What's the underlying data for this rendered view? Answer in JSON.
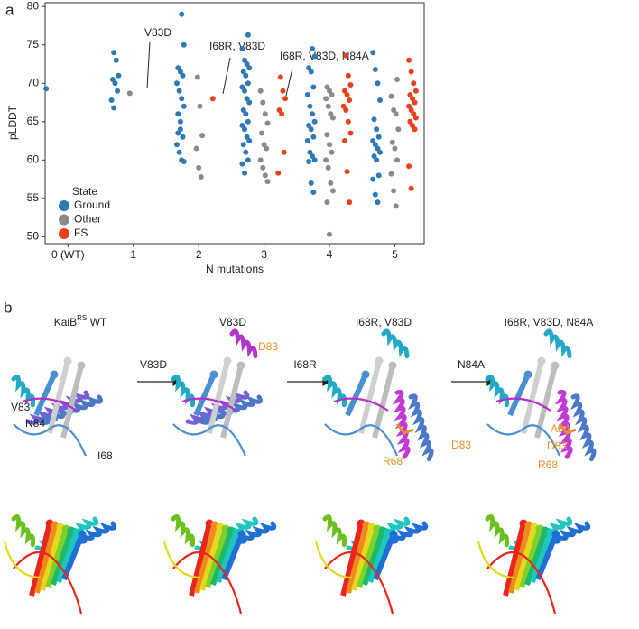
{
  "chart_data": {
    "type": "strip",
    "panel_label": "a",
    "xlabel": "N mutations",
    "ylabel": "pLDDT",
    "xlim": [
      -0.35,
      5.45
    ],
    "xticks": [
      {
        "value": 0,
        "label": "0 (WT)"
      },
      1,
      2,
      3,
      4,
      5
    ],
    "ylim": [
      49.1,
      80.5
    ],
    "yticks": [
      50,
      55,
      60,
      65,
      70,
      75,
      80
    ],
    "legend_title": "State",
    "legend": "lower left",
    "series": [
      {
        "name": "Ground",
        "color": "#2e7ab6",
        "offset": -0.28,
        "x": [
          0,
          1,
          1,
          1,
          1,
          1,
          1,
          1,
          1,
          2,
          2,
          2,
          2,
          2,
          2,
          2,
          2,
          2,
          2,
          2,
          2,
          2,
          2,
          2,
          2,
          2,
          2,
          3,
          3,
          3,
          3,
          3,
          3,
          3,
          3,
          3,
          3,
          3,
          3,
          3,
          3,
          3,
          3,
          3,
          3,
          3,
          3,
          3,
          3,
          3,
          3,
          4,
          4,
          4,
          4,
          4,
          4,
          4,
          4,
          4,
          4,
          4,
          4,
          4,
          4,
          4,
          4,
          4,
          4,
          4,
          5,
          5,
          5,
          5,
          5,
          5,
          5,
          5,
          5,
          5,
          5,
          5,
          5,
          5,
          5,
          5,
          5
        ],
        "values": [
          69.3,
          74,
          73,
          71,
          70.5,
          70,
          69,
          67.8,
          66.8,
          79,
          75,
          72,
          71.5,
          71,
          70,
          69,
          68,
          67,
          66,
          64,
          63,
          62,
          61,
          60,
          59.8,
          63.5,
          65,
          76.3,
          74.5,
          73,
          72.5,
          72,
          71.5,
          71,
          70,
          69.5,
          69,
          68,
          67.5,
          66.5,
          66,
          65,
          64.5,
          64,
          63,
          62.5,
          62,
          61,
          60,
          59.5,
          58.3,
          74.5,
          73.5,
          72,
          71.5,
          69.5,
          68.5,
          67,
          66,
          65,
          64.5,
          64,
          63,
          62.5,
          61,
          60.5,
          60,
          59.8,
          57,
          55.8,
          74,
          71.8,
          70,
          67.8,
          65.3,
          64,
          63,
          62.5,
          62,
          61.5,
          61,
          60.5,
          60,
          58,
          57.5,
          55.5,
          54.5
        ]
      },
      {
        "name": "Other",
        "color": "#8a8a8a",
        "offset": 0,
        "x": [
          1,
          2,
          2,
          2,
          2,
          2,
          2,
          3,
          3,
          3,
          3,
          3,
          3,
          3,
          3,
          3,
          3,
          3,
          4,
          4,
          4,
          4,
          4,
          4,
          4,
          4,
          4,
          4,
          4,
          4,
          4,
          4,
          4,
          4,
          5,
          5,
          5,
          5,
          5,
          5,
          5,
          5,
          5,
          5,
          5
        ],
        "values": [
          68.7,
          70.8,
          67,
          63.2,
          61.5,
          59,
          57.8,
          69,
          67.5,
          66,
          64.8,
          63.5,
          62,
          61.5,
          60,
          59,
          58,
          57.2,
          69.5,
          69,
          68.5,
          68,
          67,
          66,
          65.5,
          63.3,
          62,
          61,
          60,
          59,
          57,
          56,
          54.5,
          50.3,
          70.5,
          68.3,
          66.5,
          66,
          64,
          62.3,
          61.5,
          60,
          58.2,
          56,
          54
        ]
      },
      {
        "name": "FS",
        "color": "#e8421c",
        "offset": 0.27,
        "x": [
          2,
          3,
          3,
          3,
          3,
          3,
          3,
          3,
          4,
          4,
          4,
          4,
          4,
          4,
          4,
          4,
          4,
          4,
          4,
          4,
          4,
          5,
          5,
          5,
          5,
          5,
          5,
          5,
          5,
          5,
          5,
          5,
          5,
          5,
          5,
          5,
          5
        ],
        "values": [
          68,
          70.8,
          69,
          68,
          66.5,
          66,
          61,
          58.3,
          73.6,
          71,
          69.8,
          69,
          68.5,
          67.8,
          67,
          66.5,
          65,
          63.5,
          62.5,
          58.5,
          54.5,
          73,
          71.5,
          70,
          69,
          68.5,
          68,
          67.5,
          67,
          66.5,
          66,
          65.5,
          65,
          64.5,
          64,
          59.2,
          56.3
        ]
      }
    ],
    "annotations": [
      "V83D",
      "I68R, V83D",
      "I68R, V83D, N84A"
    ]
  },
  "panel_b": {
    "label": "b",
    "titles": [
      {
        "base": "KaiB",
        "sup": "RS",
        "rest": " WT"
      },
      "V83D",
      "I68R, V83D",
      "I68R, V83D, N84A"
    ],
    "arrows": [
      "V83D",
      "I68R",
      "N84A"
    ],
    "residue_labels": [
      {
        "text": "V83",
        "color": "#222222"
      },
      {
        "text": "N84",
        "color": "#222222"
      },
      {
        "text": "I68",
        "color": "#222222"
      },
      {
        "text": "D83",
        "color": "#e8912a"
      },
      {
        "text": "D83",
        "color": "#e8912a"
      },
      {
        "text": "R68",
        "color": "#e8912a"
      },
      {
        "text": "A84",
        "color": "#e8912a"
      },
      {
        "text": "D83",
        "color": "#e8912a"
      },
      {
        "text": "R68",
        "color": "#e8912a"
      }
    ]
  }
}
